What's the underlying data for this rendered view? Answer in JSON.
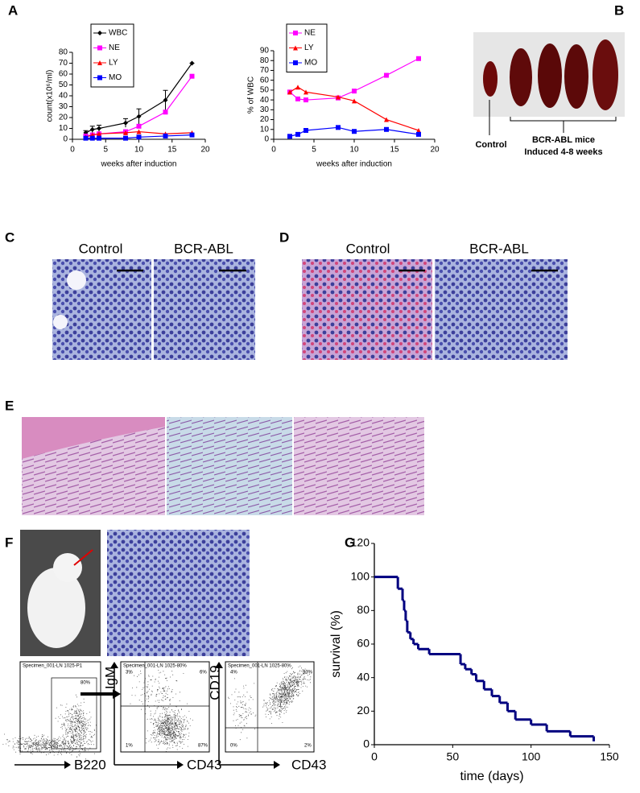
{
  "chart_data": [
    {
      "type": "line",
      "xlabel": "weeks after induction",
      "ylabel": "count(x10⁶/ml)",
      "x": [
        2,
        3,
        4,
        8,
        10,
        14,
        18
      ],
      "xlim": [
        0,
        20
      ],
      "xticks": [
        0,
        5,
        10,
        15,
        20
      ],
      "ylim": [
        0,
        80
      ],
      "yticks": [
        0,
        10,
        20,
        30,
        40,
        50,
        60,
        70,
        80
      ],
      "series": [
        {
          "name": "WBC",
          "color": "#000000",
          "marker": "diamond",
          "values": [
            6,
            9,
            10,
            15,
            21,
            36,
            70
          ],
          "errors": [
            2,
            3,
            3,
            4,
            7,
            9,
            0
          ]
        },
        {
          "name": "NE",
          "color": "#ff00ff",
          "marker": "square",
          "values": [
            3,
            4,
            5,
            7,
            12,
            25,
            58
          ]
        },
        {
          "name": "LY",
          "color": "#ff0000",
          "marker": "triangle",
          "values": [
            2,
            4,
            5,
            6,
            7,
            5,
            6
          ]
        },
        {
          "name": "MO",
          "color": "#0000ff",
          "marker": "square",
          "values": [
            1,
            1,
            1,
            1,
            2,
            3,
            4
          ]
        }
      ]
    },
    {
      "type": "line",
      "xlabel": "weeks after induction",
      "ylabel": "% of WBC",
      "x": [
        2,
        3,
        4,
        8,
        10,
        14,
        18
      ],
      "xlim": [
        0,
        20
      ],
      "xticks": [
        0,
        5,
        10,
        15,
        20
      ],
      "ylim": [
        0,
        90
      ],
      "yticks": [
        0,
        10,
        20,
        30,
        40,
        50,
        60,
        70,
        80,
        90
      ],
      "series": [
        {
          "name": "NE",
          "color": "#ff00ff",
          "marker": "square",
          "values": [
            48,
            41,
            40,
            42,
            49,
            65,
            82
          ]
        },
        {
          "name": "LY",
          "color": "#ff0000",
          "marker": "triangle",
          "values": [
            48,
            53,
            48,
            43,
            39,
            20,
            9
          ]
        },
        {
          "name": "MO",
          "color": "#0000ff",
          "marker": "square",
          "values": [
            3,
            5,
            9,
            12,
            8,
            10,
            5
          ]
        }
      ]
    },
    {
      "type": "step",
      "xlabel": "time (days)",
      "ylabel": "survival (%)",
      "color": "#000080",
      "x": [
        0,
        15,
        18,
        19,
        20,
        21,
        23,
        25,
        28,
        35,
        55,
        58,
        62,
        65,
        70,
        75,
        80,
        85,
        90,
        100,
        110,
        125,
        140
      ],
      "values": [
        100,
        93,
        86,
        80,
        74,
        67,
        63,
        60,
        57,
        54,
        48,
        45,
        42,
        38,
        33,
        29,
        25,
        20,
        15,
        12,
        8,
        5,
        2
      ],
      "xlim": [
        0,
        150
      ],
      "xticks": [
        0,
        50,
        100,
        150
      ],
      "ylim": [
        0,
        120
      ],
      "yticks": [
        0,
        20,
        40,
        60,
        80,
        100,
        120
      ]
    }
  ],
  "panels": {
    "letters": [
      "A",
      "B",
      "C",
      "D",
      "E",
      "F",
      "G"
    ]
  },
  "spleen": {
    "control": "Control",
    "group": "BCR-ABL mice",
    "group_detail": "Induced 4-8 weeks"
  },
  "histology": {
    "c_control": "Control",
    "c_bcr": "BCR-ABL",
    "d_control": "Control",
    "d_bcr": "BCR-ABL"
  },
  "flow": {
    "specimen1": "Specimen_001-LN 1025-P1",
    "specimen2": "Specimen_001-LN 1025-80%",
    "specimen3": "Specimen_001-LN 1025-80%",
    "gate": "80%",
    "q1": [
      "3%",
      "6%",
      "1%",
      "87%"
    ],
    "q2": [
      "4%",
      "93%",
      "0%",
      "2%"
    ],
    "axis1": "B220",
    "axis2y": "IgM",
    "axis2x": "CD43",
    "axis3y": "CD19",
    "axis3x": "CD43"
  }
}
